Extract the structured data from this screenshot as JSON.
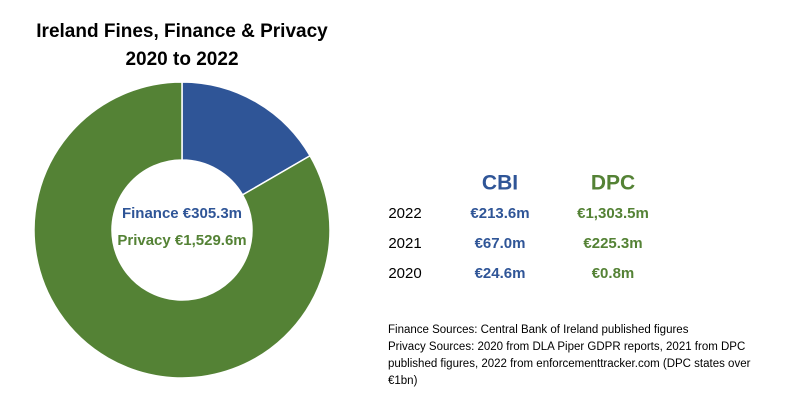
{
  "chart_data": {
    "type": "donut",
    "title": "Ireland Fines, Finance & Privacy",
    "subtitle": "2020 to 2022",
    "categories": [
      "Finance",
      "Privacy"
    ],
    "values": [
      305.3,
      1529.6
    ],
    "value_labels": [
      "Finance €305.3m",
      "Privacy €1,529.6m"
    ],
    "colors": [
      "#2f5597",
      "#548235"
    ]
  },
  "table": {
    "headers": [
      "CBI",
      "DPC"
    ],
    "rows": [
      [
        "2022",
        "€213.6m",
        "€1,303.5m"
      ],
      [
        "2021",
        "€67.0m",
        "€225.3m"
      ],
      [
        "2020",
        "€24.6m",
        "€0.8m"
      ]
    ]
  },
  "notes": [
    "Finance Sources: Central Bank of Ireland published figures",
    "Privacy Sources: 2020 from DLA Piper GDPR reports, 2021 from DPC published figures, 2022 from enforcementtracker.com (DPC states over €1bn)"
  ]
}
